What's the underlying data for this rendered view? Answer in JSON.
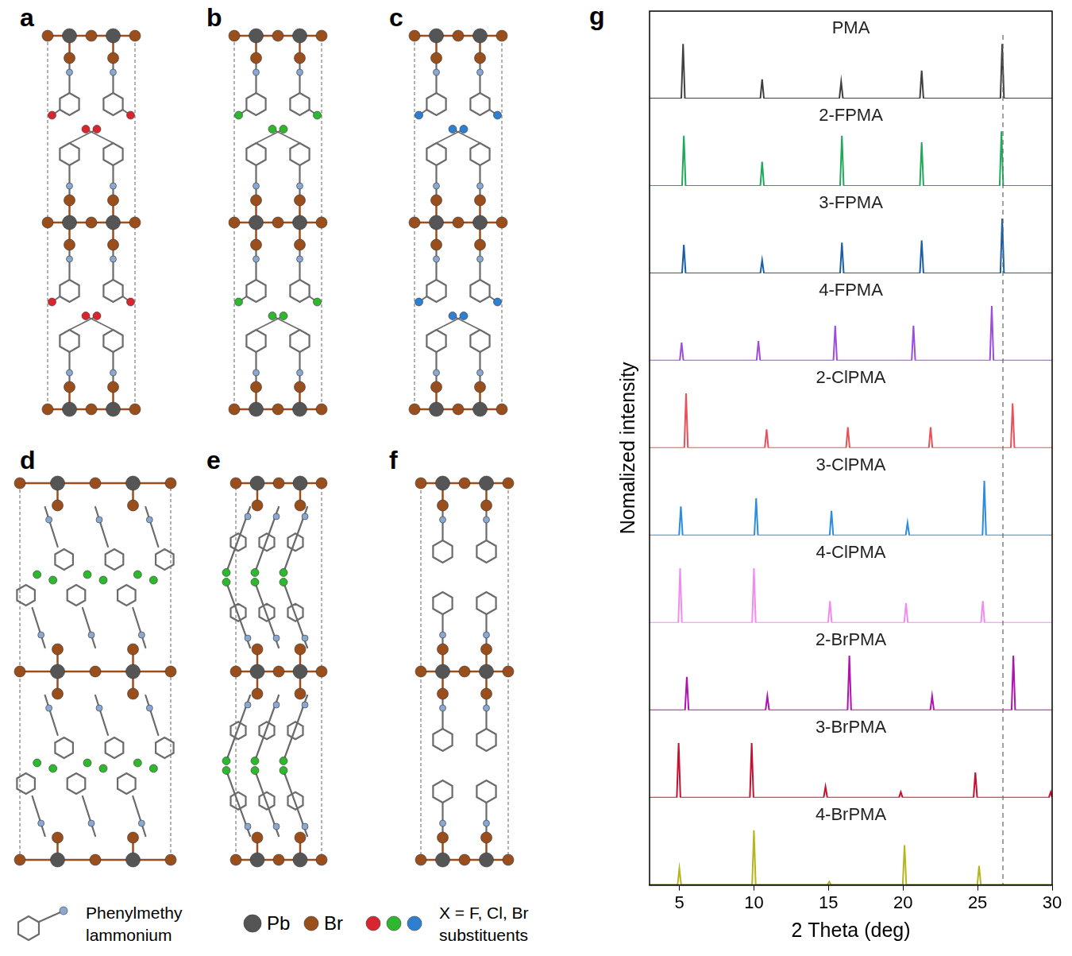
{
  "panels": [
    {
      "letter": "a",
      "substituent_color": "#d9262e"
    },
    {
      "letter": "b",
      "substituent_color": "#2db82d"
    },
    {
      "letter": "c",
      "substituent_color": "#2f7fd1"
    },
    {
      "letter": "d",
      "substituent_color": "#2db82d"
    },
    {
      "letter": "e",
      "substituent_color": "#2db82d"
    },
    {
      "letter": "f"
    }
  ],
  "legend_items": {
    "molecule": [
      "Phenylmethy",
      "lammonium"
    ],
    "atoms": [
      {
        "label": "Pb",
        "color": "#555555"
      },
      {
        "label": "Br",
        "color": "#9a4e1c"
      }
    ],
    "substituents": {
      "colors": [
        "#d9262e",
        "#2db82d",
        "#2f7fd1"
      ],
      "label": [
        "X = F, Cl, Br",
        "substituents"
      ]
    }
  },
  "chart_data": {
    "type": "line",
    "panel": "g",
    "x_label": "2 Theta (deg)",
    "y_label": "Nomalized intensity",
    "xlim": [
      3,
      30
    ],
    "xticks": [
      5,
      10,
      15,
      20,
      25,
      30
    ],
    "ylim": [
      0,
      1.6
    ],
    "tick_labels": "x",
    "grid": false,
    "vline": 26.7,
    "series": [
      {
        "name": "4-BrPMA",
        "color": "#b5b520",
        "x": [
          3,
          4.88,
          5.0,
          5.12,
          9.88,
          10.0,
          10.12,
          14.93,
          15.05,
          15.17,
          19.98,
          20.1,
          20.22,
          24.98,
          25.1,
          25.22,
          30
        ],
        "values": [
          0,
          0,
          0.3,
          0,
          0,
          1,
          0,
          0,
          0.06,
          0,
          0,
          0.73,
          0,
          0,
          0.35,
          0,
          0
        ]
      },
      {
        "name": "3-BrPMA",
        "color": "#c8102e",
        "x": [
          3,
          4.83,
          4.95,
          5.07,
          9.73,
          9.85,
          9.97,
          14.68,
          14.8,
          14.92,
          19.73,
          19.85,
          19.97,
          24.73,
          24.85,
          24.97,
          29.78,
          29.9,
          30
        ],
        "values": [
          0,
          0,
          1,
          0,
          0,
          1,
          0,
          0,
          0.2,
          0,
          0,
          0.1,
          0,
          0,
          0.46,
          0,
          0,
          0.1,
          0
        ]
      },
      {
        "name": "2-BrPMA",
        "color": "#b012b0",
        "x": [
          3,
          5.38,
          5.5,
          5.62,
          10.78,
          10.9,
          11.02,
          16.28,
          16.4,
          16.52,
          21.83,
          21.95,
          22.07,
          27.28,
          27.4,
          27.52,
          30
        ],
        "values": [
          0,
          0,
          0.61,
          0,
          0,
          0.26,
          0,
          0,
          1,
          0,
          0,
          0.26,
          0,
          0,
          1,
          0,
          0
        ]
      },
      {
        "name": "4-ClPMA",
        "color": "#f08cf0",
        "x": [
          3,
          4.93,
          5.05,
          5.17,
          9.88,
          10.0,
          10.12,
          14.98,
          15.1,
          15.22,
          20.08,
          20.2,
          20.32,
          25.23,
          25.35,
          25.47,
          30
        ],
        "values": [
          0,
          0,
          1,
          0,
          0,
          1,
          0,
          0,
          0.4,
          0,
          0,
          0.36,
          0,
          0,
          0.4,
          0,
          0
        ]
      },
      {
        "name": "3-ClPMA",
        "color": "#2b8ce0",
        "x": [
          3,
          4.98,
          5.1,
          5.22,
          10.03,
          10.15,
          10.27,
          15.08,
          15.2,
          15.32,
          20.18,
          20.3,
          20.42,
          25.33,
          25.45,
          25.57,
          30
        ],
        "values": [
          0,
          0,
          0.53,
          0,
          0,
          0.68,
          0,
          0,
          0.45,
          0,
          0,
          0.23,
          0,
          0,
          1,
          0,
          0
        ]
      },
      {
        "name": "2-ClPMA",
        "color": "#e8505a",
        "x": [
          3,
          5.33,
          5.45,
          5.57,
          10.73,
          10.85,
          10.97,
          16.18,
          16.3,
          16.42,
          21.73,
          21.85,
          21.97,
          27.23,
          27.35,
          27.47,
          30
        ],
        "values": [
          0,
          0,
          1,
          0,
          0,
          0.34,
          0,
          0,
          0.38,
          0,
          0,
          0.38,
          0,
          0,
          0.82,
          0,
          0
        ]
      },
      {
        "name": "4-FPMA",
        "color": "#9b4de0",
        "x": [
          3,
          5.03,
          5.15,
          5.27,
          10.18,
          10.3,
          10.42,
          15.33,
          15.45,
          15.57,
          20.58,
          20.7,
          20.82,
          25.83,
          25.95,
          26.07,
          30
        ],
        "values": [
          0,
          0,
          0.33,
          0,
          0,
          0.36,
          0,
          0,
          0.64,
          0,
          0,
          0.64,
          0,
          0,
          1,
          0,
          0
        ]
      },
      {
        "name": "3-FPMA",
        "color": "#1a5fa8",
        "x": [
          3,
          5.18,
          5.3,
          5.42,
          10.43,
          10.55,
          10.67,
          15.78,
          15.9,
          16.02,
          21.13,
          21.25,
          21.37,
          26.53,
          26.65,
          26.77,
          30
        ],
        "values": [
          0,
          0,
          0.52,
          0,
          0,
          0.24,
          0,
          0,
          0.56,
          0,
          0,
          0.6,
          0,
          0,
          1,
          0,
          0
        ]
      },
      {
        "name": "2-FPMA",
        "color": "#1faa5a",
        "x": [
          3,
          5.18,
          5.3,
          5.42,
          10.43,
          10.55,
          10.67,
          15.78,
          15.9,
          16.02,
          21.13,
          21.25,
          21.37,
          26.48,
          26.6,
          26.72,
          30
        ],
        "values": [
          0,
          0,
          0.92,
          0,
          0,
          0.44,
          0,
          0,
          0.92,
          0,
          0,
          0.8,
          0,
          0,
          1,
          0,
          0
        ]
      },
      {
        "name": "PMA",
        "color": "#404040",
        "x": [
          3,
          5.13,
          5.25,
          5.37,
          10.43,
          10.55,
          10.67,
          15.73,
          15.85,
          15.97,
          21.13,
          21.25,
          21.37,
          26.53,
          26.65,
          26.77,
          30
        ],
        "values": [
          0,
          0,
          1,
          0,
          0,
          0.35,
          0,
          0,
          0.31,
          0,
          0,
          0.51,
          0,
          0,
          1,
          0,
          0
        ]
      }
    ]
  }
}
